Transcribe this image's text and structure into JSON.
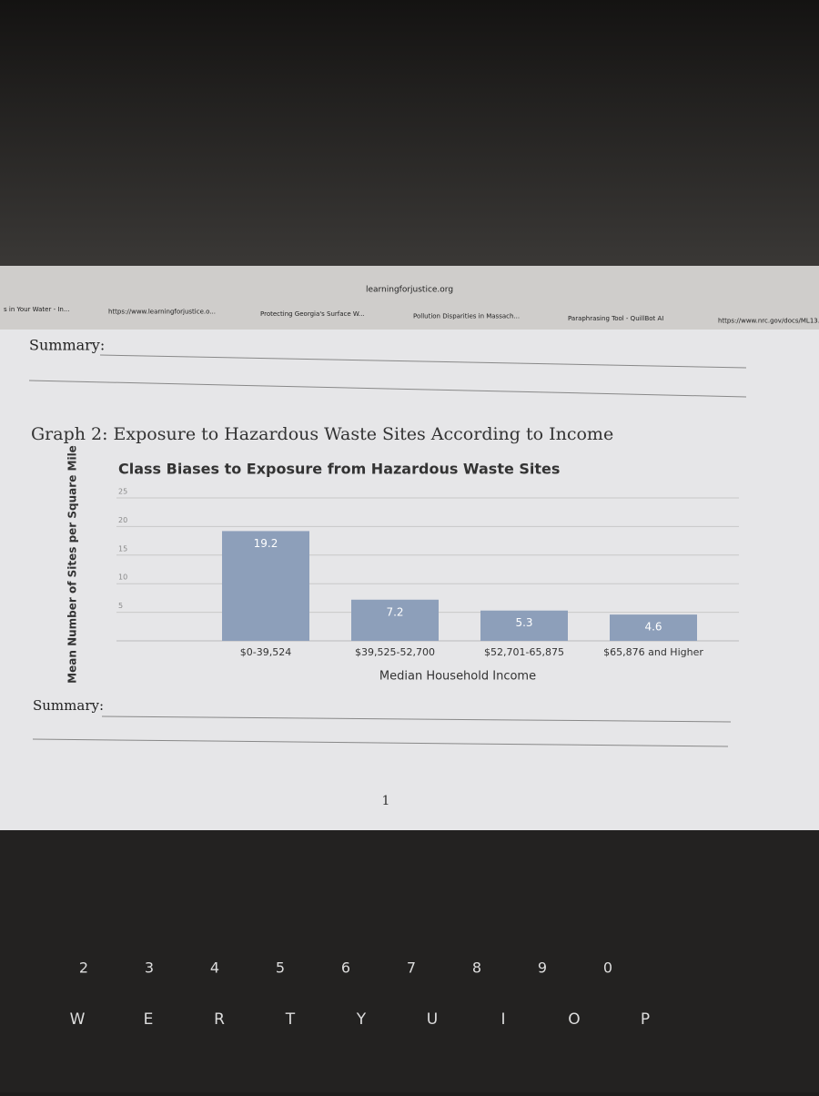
{
  "browser": {
    "address": "learningforjustice.org",
    "tabs": [
      "s in Your Water - In...",
      "https://www.learningforjustice.o...",
      "Protecting Georgia's Surface W...",
      "Pollution Disparities in Massach...",
      "Paraphrasing Tool - QuillBot AI",
      "https://www.nrc.gov/docs/ML13..."
    ]
  },
  "document": {
    "summary_top": "Summary:",
    "graph_heading": "Graph 2: Exposure to Hazardous Waste Sites According to Income",
    "summary_bottom": "Summary:",
    "page_number": "1"
  },
  "chart_data": {
    "type": "bar",
    "title": "Class Biases to Exposure from Hazardous Waste Sites",
    "x_label": "Median Household Income",
    "y_label": "Mean Number of Sites per Square Mile",
    "categories": [
      "$0-39,524",
      "$39,525-52,700",
      "$52,701-65,875",
      "$65,876 and Higher"
    ],
    "values": [
      19.2,
      7.2,
      5.3,
      4.6
    ],
    "color": "#8d9fba",
    "ylim": [
      0,
      25
    ],
    "yticks": [
      5,
      10,
      15,
      20,
      25
    ],
    "grid": true
  },
  "keyboard": {
    "number_keys": [
      "2",
      "3",
      "4",
      "5",
      "6",
      "7",
      "8",
      "9",
      "0"
    ],
    "letter_keys": [
      "W",
      "E",
      "R",
      "T",
      "Y",
      "U",
      "I",
      "O",
      "P"
    ]
  }
}
